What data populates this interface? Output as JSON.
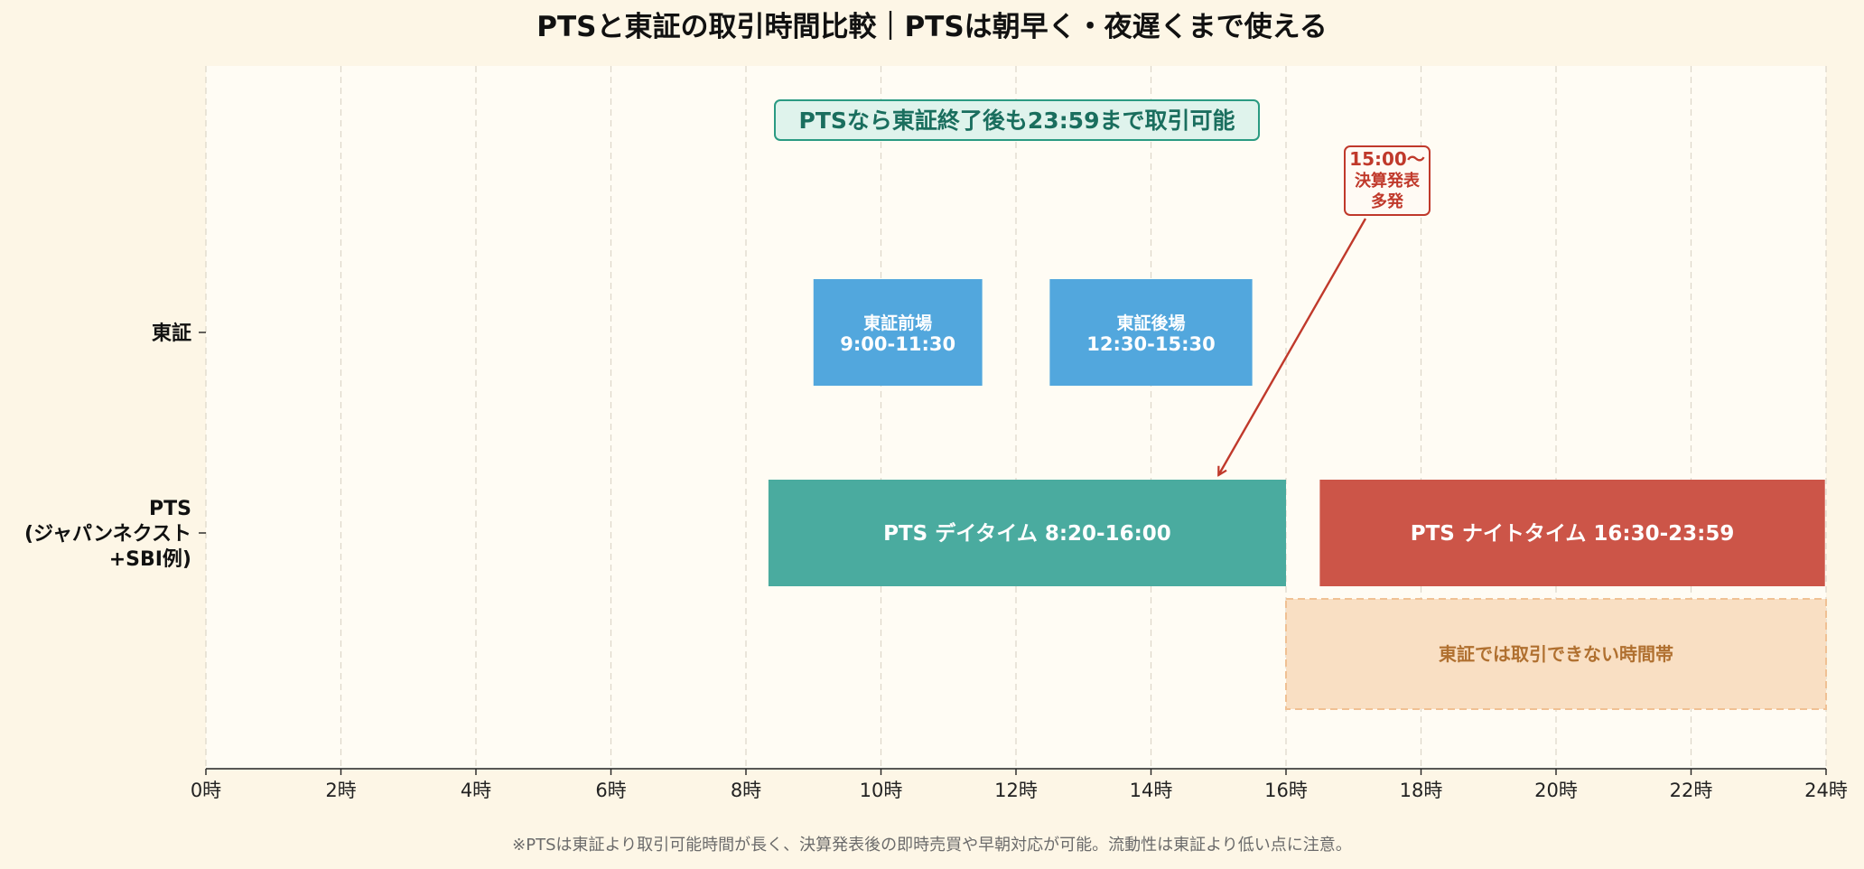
{
  "title": "PTSと東証の取引時間比較｜PTSは朝早く・夜遅くまで使える",
  "footnote": "※PTSは東証より取引可能時間が長く、決算発表後の即時売買や早朝対応が可能。流動性は東証より低い点に注意。",
  "colors": {
    "background": "#fdf6e6",
    "plot_background": "#fffcf4",
    "tse": "#52a7dd",
    "pts_day": "#4aab9f",
    "pts_night": "#cc5548",
    "no_trade_fill": "#f9dfc3",
    "no_trade_text": "#b07030",
    "highlight_text": "#1a6e5e",
    "annotation": "#c0392b"
  },
  "chart_data": {
    "type": "timeline",
    "title": "PTSと東証の取引時間比較｜PTSは朝早く・夜遅くまで使える",
    "xlim": [
      0,
      24
    ],
    "xticks": [
      0,
      2,
      4,
      6,
      8,
      10,
      12,
      14,
      16,
      18,
      20,
      22,
      24
    ],
    "xtick_suffix": "時",
    "grid": true,
    "rows": [
      {
        "key": "tse",
        "label_lines": [
          "東証"
        ]
      },
      {
        "key": "pts",
        "label_lines": [
          "PTS",
          "(ジャパンネクスト",
          "+SBI例)"
        ]
      }
    ],
    "bars": [
      {
        "row": "tse",
        "start": 9.0,
        "end": 11.5,
        "label_lines": [
          "東証前場",
          "9:00-11:30"
        ],
        "color": "#52a7dd"
      },
      {
        "row": "tse",
        "start": 12.5,
        "end": 15.5,
        "label_lines": [
          "東証後場",
          "12:30-15:30"
        ],
        "color": "#52a7dd"
      },
      {
        "row": "pts",
        "start": 8.333,
        "end": 16.0,
        "label_lines": [
          "PTS デイタイム  8:20-16:00"
        ],
        "color": "#4aab9f"
      },
      {
        "row": "pts",
        "start": 16.5,
        "end": 23.983,
        "label_lines": [
          "PTS ナイトタイム  16:30-23:59"
        ],
        "color": "#cc5548"
      }
    ],
    "shaded_region": {
      "start": 16.0,
      "end": 24.0,
      "label": "東証では取引できない時間帯"
    },
    "highlight_box": "PTSなら東証終了後も23:59まで取引可能",
    "annotation": {
      "lines": [
        "15:00〜",
        "決算発表",
        "多発"
      ],
      "points_to_time": 15.0
    }
  }
}
